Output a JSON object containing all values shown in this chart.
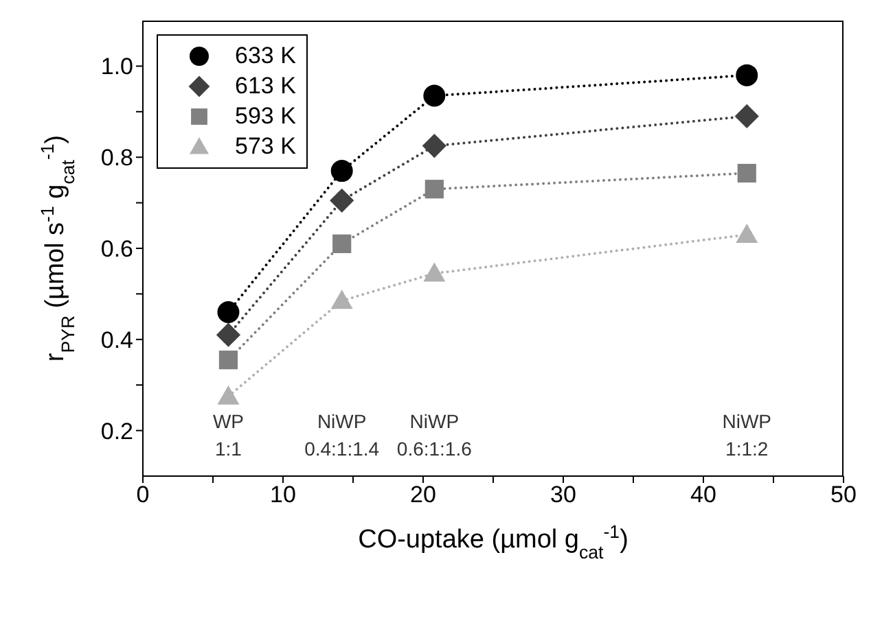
{
  "chart_data": {
    "type": "line",
    "xlabel": "CO-uptake (µmol g$_{cat}$$^{-1}$)",
    "ylabel": "r$_{PYR}$ (µmol s$^{-1}$ g$_{cat}$$^{-1}$)",
    "x": [
      6.1,
      14.2,
      20.8,
      43.1
    ],
    "series": [
      {
        "name": "633 K",
        "color": "#000000",
        "marker": "circle",
        "values": [
          0.46,
          0.77,
          0.935,
          0.98
        ]
      },
      {
        "name": "613 K",
        "color": "#404040",
        "marker": "diamond",
        "values": [
          0.41,
          0.705,
          0.825,
          0.89
        ]
      },
      {
        "name": "593 K",
        "color": "#808080",
        "marker": "square",
        "values": [
          0.355,
          0.61,
          0.73,
          0.765
        ]
      },
      {
        "name": "573 K",
        "color": "#b0b0b0",
        "marker": "triangle",
        "values": [
          0.275,
          0.485,
          0.545,
          0.63
        ]
      }
    ],
    "line_style": "dotted",
    "xlim": [
      0,
      50
    ],
    "xticks": [
      0,
      {
        "value": 5,
        "label": null
      },
      10,
      {
        "value": 15,
        "label": null
      },
      20,
      {
        "value": 25,
        "label": null
      },
      30,
      {
        "value": 35,
        "label": null
      },
      40,
      {
        "value": 45,
        "label": null
      },
      50
    ],
    "ylim": [
      0.1,
      1.1
    ],
    "yticks": [
      0.2,
      {
        "value": 0.3,
        "label": null
      },
      0.4,
      {
        "value": 0.5,
        "label": null
      },
      0.6,
      {
        "value": 0.7,
        "label": null
      },
      0.8,
      {
        "value": 0.9,
        "label": null
      },
      {
        "value": 1,
        "label": "1.0"
      }
    ],
    "annotations": [
      "WP\n1:1",
      "NiWP\n0.4:1:1.4",
      "NiWP\n0.6:1:1.6",
      "NiWP\n1:1:2"
    ],
    "legend": "top left",
    "grid": false
  }
}
